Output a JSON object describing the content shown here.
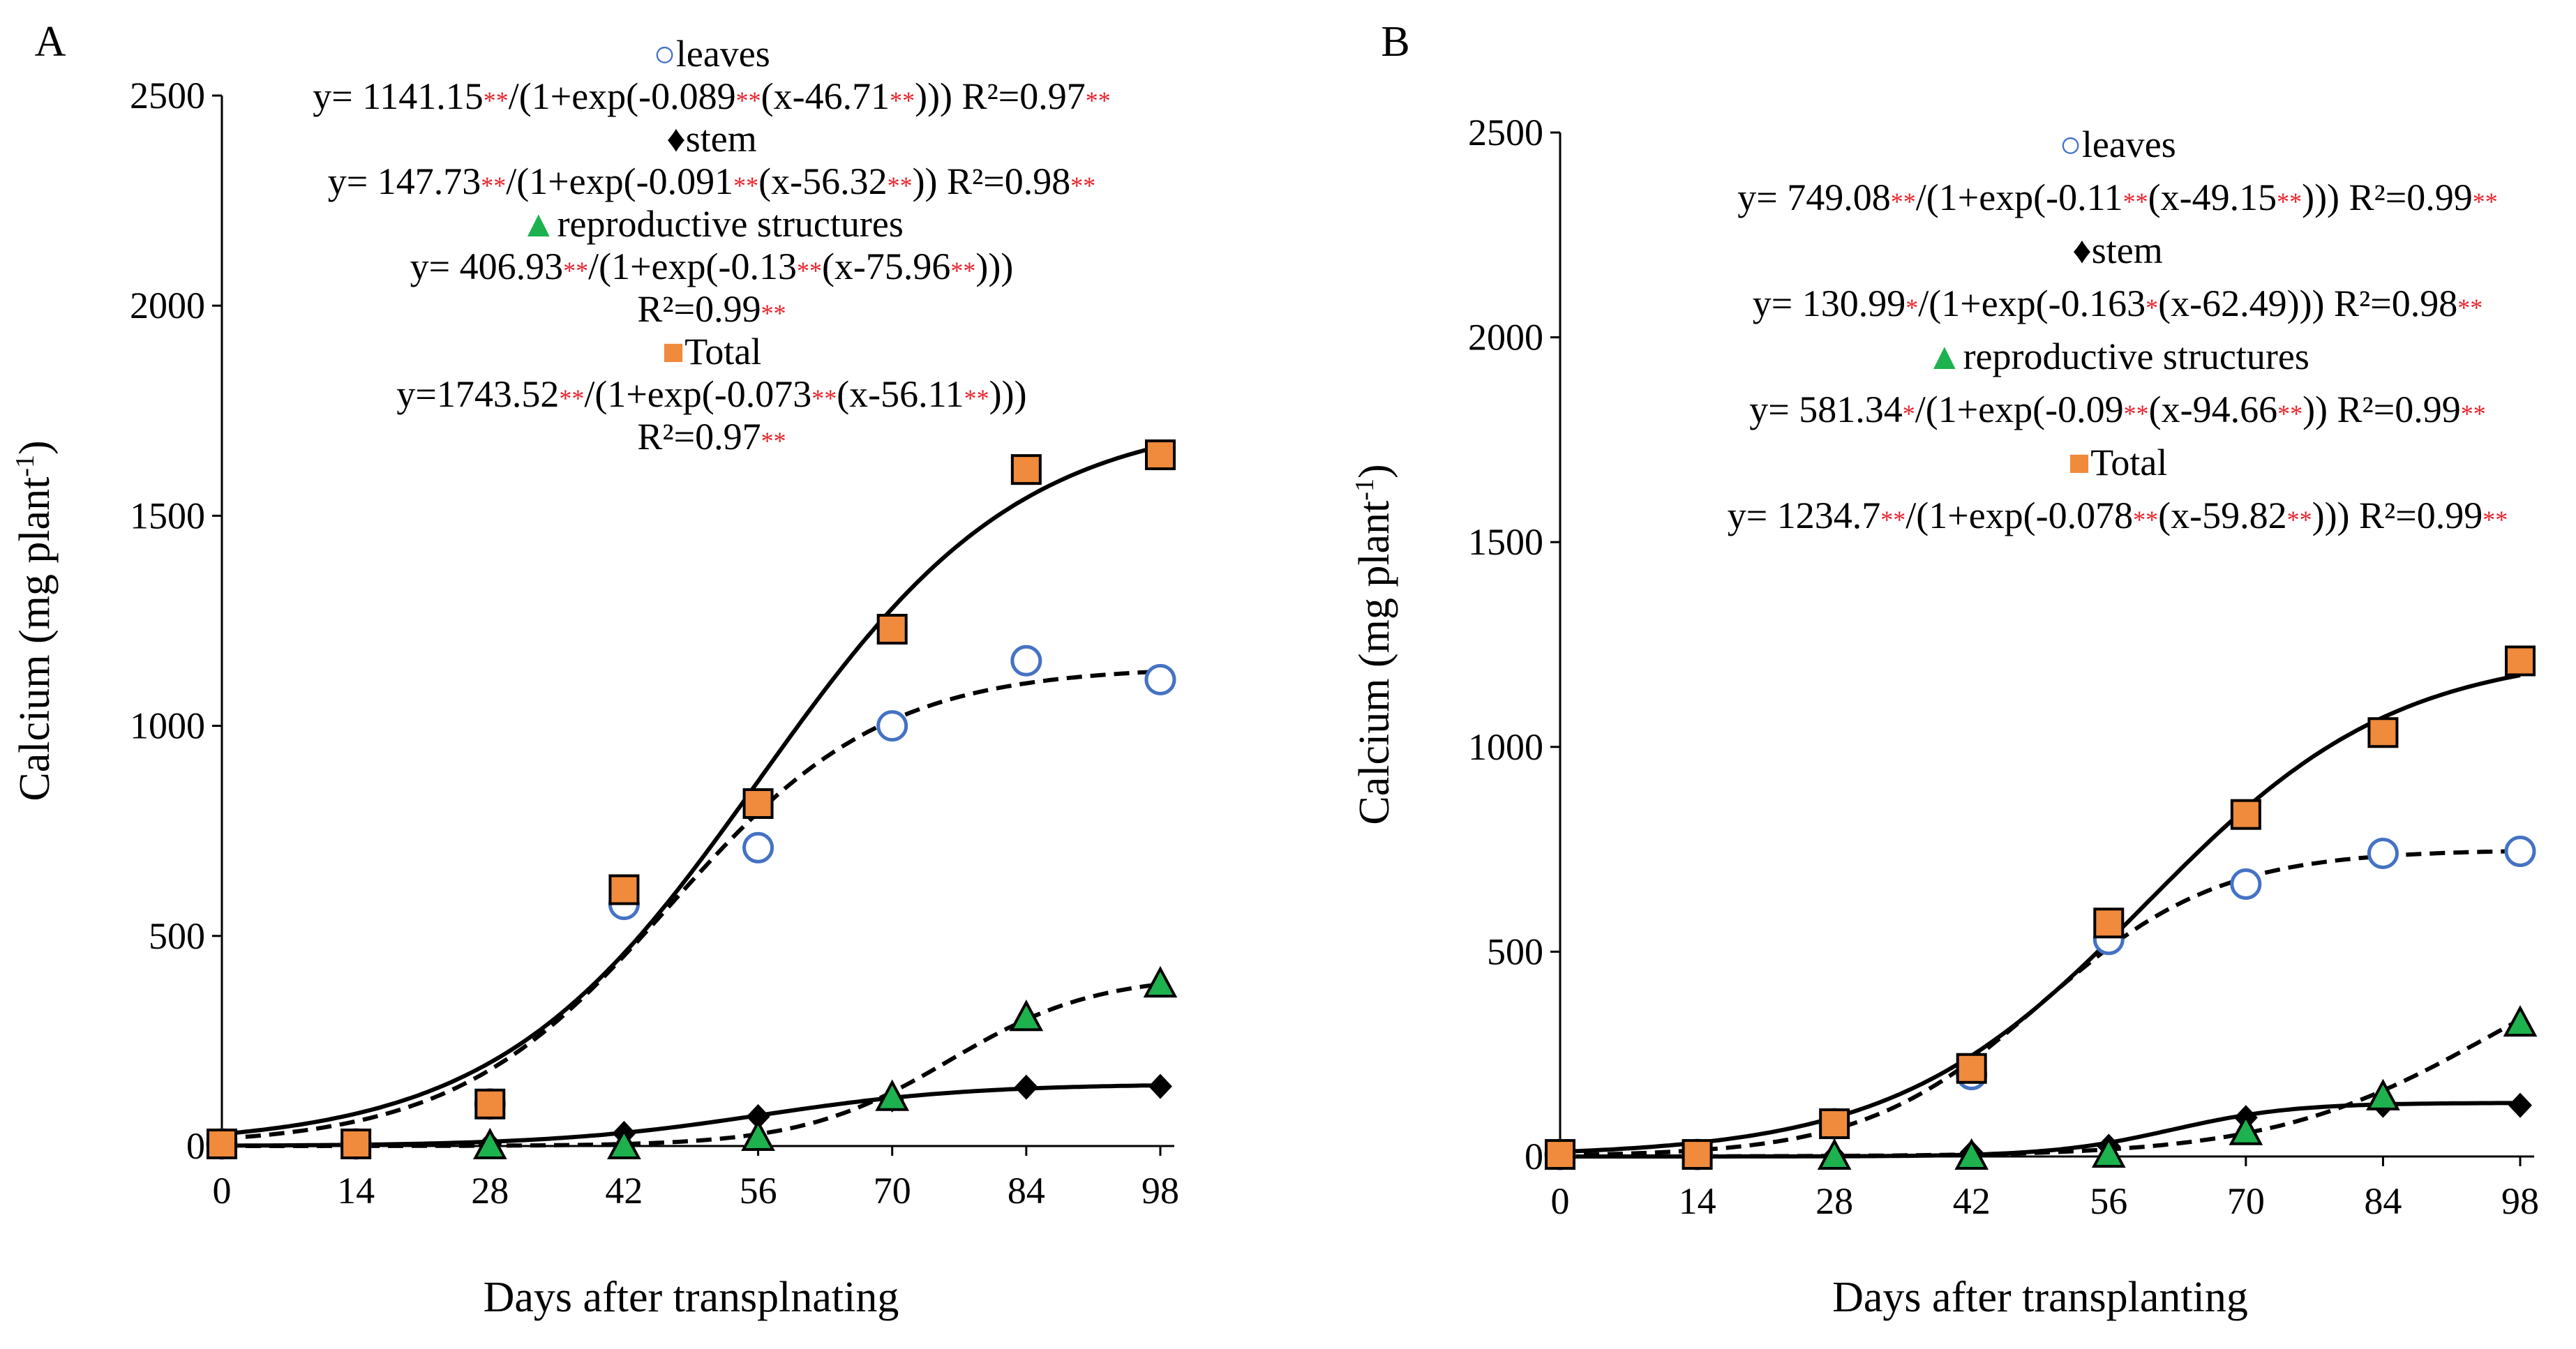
{
  "chart_data": [
    {
      "panel": "A",
      "type": "scatter",
      "xlabel": "Days after transplnating",
      "ylabel": "Calcium (mg plant",
      "ylabel_sup": "-1",
      "ylabel_end": ")",
      "xticks": [
        0,
        14,
        28,
        42,
        56,
        70,
        84,
        98
      ],
      "yticks": [
        0,
        500,
        1000,
        1500,
        2000,
        2500
      ],
      "xlim": [
        0,
        98
      ],
      "ylim": [
        0,
        2500
      ],
      "series": [
        {
          "name": "leaves",
          "marker": "circle",
          "color": "#4472c4",
          "fit": "dashed",
          "x": [
            0,
            14,
            28,
            42,
            56,
            70,
            84,
            98
          ],
          "y": [
            5,
            5,
            100,
            575,
            710,
            1000,
            1155,
            1110
          ],
          "model": {
            "a": 1141.15,
            "b": 0.089,
            "c": 46.71
          }
        },
        {
          "name": "stem",
          "marker": "diamond",
          "color": "#000000",
          "fit": "solid",
          "x": [
            0,
            14,
            28,
            42,
            56,
            70,
            84,
            98
          ],
          "y": [
            0,
            2,
            5,
            30,
            70,
            110,
            140,
            142
          ],
          "model": {
            "a": 147.73,
            "b": 0.091,
            "c": 56.32
          }
        },
        {
          "name": "reproductive structures",
          "marker": "triangle",
          "color": "#1db24e",
          "fit": "dashed",
          "x": [
            28,
            42,
            56,
            70,
            84,
            98
          ],
          "y": [
            0,
            0,
            20,
            115,
            305,
            385
          ],
          "model": {
            "a": 406.93,
            "b": 0.13,
            "c": 75.96
          }
        },
        {
          "name": "Total",
          "marker": "square",
          "color": "#f08a3c",
          "fit": "solid",
          "x": [
            0,
            14,
            28,
            42,
            56,
            70,
            84,
            98
          ],
          "y": [
            5,
            5,
            100,
            610,
            815,
            1230,
            1610,
            1645
          ],
          "model": {
            "a": 1743.52,
            "b": 0.073,
            "c": 56.11
          }
        }
      ],
      "legend": [
        {
          "sym": "○",
          "label": "leaves",
          "lines": [
            [
              [
                "y= 1141.15",
                "t"
              ],
              [
                "**",
                "s"
              ],
              [
                "/(1+exp(-0.089",
                "t"
              ],
              [
                "**",
                "s"
              ],
              [
                "(x-46.71",
                "t"
              ],
              [
                "**",
                "s"
              ],
              [
                ")))  R²=0.97",
                "t"
              ],
              [
                "**",
                "s"
              ]
            ]
          ]
        },
        {
          "sym": "♦",
          "label": "stem",
          "lines": [
            [
              [
                "y= 147.73",
                "t"
              ],
              [
                "**",
                "s"
              ],
              [
                "/(1+exp(-0.091",
                "t"
              ],
              [
                "**",
                "s"
              ],
              [
                "(x-56.32",
                "t"
              ],
              [
                "**",
                "s"
              ],
              [
                "))  R²=0.98",
                "t"
              ],
              [
                "**",
                "s"
              ]
            ]
          ]
        },
        {
          "sym": "▲",
          "label": "reproductive structures",
          "lines": [
            [
              [
                "y= 406.93",
                "t"
              ],
              [
                "**",
                "s"
              ],
              [
                "/(1+exp(-0.13",
                "t"
              ],
              [
                "**",
                "s"
              ],
              [
                "(x-75.96",
                "t"
              ],
              [
                "**",
                "s"
              ],
              [
                ")))",
                "t"
              ]
            ],
            [
              [
                "R²=0.99",
                "t"
              ],
              [
                "**",
                "s"
              ]
            ]
          ]
        },
        {
          "sym": "■",
          "label": "Total",
          "lines": [
            [
              [
                "y=1743.52",
                "t"
              ],
              [
                "**",
                "s"
              ],
              [
                "/(1+exp(-0.073",
                "t"
              ],
              [
                "**",
                "s"
              ],
              [
                "(x-56.11",
                "t"
              ],
              [
                "**",
                "s"
              ],
              [
                ")))",
                "t"
              ]
            ],
            [
              [
                "R²=0.97",
                "t"
              ],
              [
                "**",
                "s"
              ]
            ]
          ]
        }
      ]
    },
    {
      "panel": "B",
      "type": "scatter",
      "xlabel": "Days after transplanting",
      "ylabel": "Calcium (mg plant",
      "ylabel_sup": "-1",
      "ylabel_end": ")",
      "xticks": [
        0,
        14,
        28,
        42,
        56,
        70,
        84,
        98
      ],
      "yticks": [
        0,
        500,
        1000,
        1500,
        2000,
        2500
      ],
      "xlim": [
        0,
        98
      ],
      "ylim": [
        0,
        2500
      ],
      "series": [
        {
          "name": "leaves",
          "marker": "circle",
          "color": "#4472c4",
          "fit": "dashed",
          "x": [
            0,
            14,
            28,
            42,
            56,
            70,
            84,
            98
          ],
          "y": [
            5,
            5,
            80,
            200,
            530,
            665,
            740,
            745
          ],
          "model": {
            "a": 749.08,
            "b": 0.11,
            "c": 49.15
          }
        },
        {
          "name": "stem",
          "marker": "diamond",
          "color": "#000000",
          "fit": "solid",
          "x": [
            0,
            14,
            28,
            42,
            56,
            70,
            84,
            98
          ],
          "y": [
            0,
            0,
            2,
            10,
            25,
            95,
            125,
            125
          ],
          "model": {
            "a": 130.99,
            "b": 0.163,
            "c": 62.49
          }
        },
        {
          "name": "reproductive structures",
          "marker": "triangle",
          "color": "#1db24e",
          "fit": "dashed",
          "x": [
            28,
            42,
            56,
            70,
            84,
            98
          ],
          "y": [
            0,
            0,
            5,
            60,
            145,
            325
          ],
          "model": {
            "a": 581.34,
            "b": 0.09,
            "c": 94.66
          }
        },
        {
          "name": "Total",
          "marker": "square",
          "color": "#f08a3c",
          "fit": "solid",
          "x": [
            0,
            14,
            28,
            42,
            56,
            70,
            84,
            98
          ],
          "y": [
            5,
            5,
            80,
            215,
            570,
            835,
            1035,
            1210
          ],
          "model": {
            "a": 1234.7,
            "b": 0.078,
            "c": 59.82
          }
        }
      ],
      "legend": [
        {
          "sym": "○",
          "label": "leaves",
          "lines": [
            [
              [
                "y= 749.08",
                "t"
              ],
              [
                "**",
                "s"
              ],
              [
                "/(1+exp(-0.11",
                "t"
              ],
              [
                "**",
                "s"
              ],
              [
                "(x-49.15",
                "t"
              ],
              [
                "**",
                "s"
              ],
              [
                "))) R²=0.99",
                "t"
              ],
              [
                "**",
                "s"
              ]
            ]
          ]
        },
        {
          "sym": "♦",
          "label": "stem",
          "lines": [
            [
              [
                "y= 130.99",
                "t"
              ],
              [
                "*",
                "s"
              ],
              [
                "/(1+exp(-0.163",
                "t"
              ],
              [
                "*",
                "s"
              ],
              [
                "(x-62.49))) R²=0.98",
                "t"
              ],
              [
                "**",
                "s"
              ]
            ]
          ]
        },
        {
          "sym": "▲",
          "label": "reproductive structures",
          "lines": [
            [
              [
                "y= 581.34",
                "t"
              ],
              [
                "*",
                "s"
              ],
              [
                "/(1+exp(-0.09",
                "t"
              ],
              [
                "**",
                "s"
              ],
              [
                "(x-94.66",
                "t"
              ],
              [
                "**",
                "s"
              ],
              [
                "))  R²=0.99",
                "t"
              ],
              [
                "**",
                "s"
              ]
            ]
          ]
        },
        {
          "sym": "■",
          "label": "Total",
          "lines": [
            [
              [
                "y= 1234.7",
                "t"
              ],
              [
                "**",
                "s"
              ],
              [
                "/(1+exp(-0.078",
                "t"
              ],
              [
                "**",
                "s"
              ],
              [
                "(x-59.82",
                "t"
              ],
              [
                "**",
                "s"
              ],
              [
                "))) R²=0.99",
                "t"
              ],
              [
                "**",
                "s"
              ]
            ]
          ]
        }
      ]
    }
  ]
}
